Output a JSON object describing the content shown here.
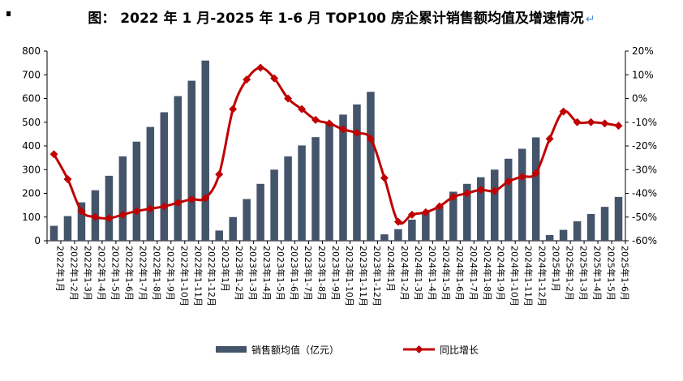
{
  "title": "图：  2022 年 1 月-2025 年 1-6 月 TOP100 房企累计销售额均值及增速情况",
  "title_return_mark": "↵",
  "chart_data": {
    "type": "bar",
    "categories": [
      "2022年1月",
      "2022年1-2月",
      "2022年1-3月",
      "2022年1-4月",
      "2022年1-5月",
      "2022年1-6月",
      "2022年1-7月",
      "2022年1-8月",
      "2022年1-9月",
      "2022年1-10月",
      "2022年1-11月",
      "2022年1-12月",
      "2023年1月",
      "2023年1-2月",
      "2023年1-3月",
      "2023年1-4月",
      "2023年1-5月",
      "2023年1-6月",
      "2023年1-7月",
      "2023年1-8月",
      "2023年1-9月",
      "2023年1-10月",
      "2023年1-11月",
      "2023年1-12月",
      "2024年1月",
      "2024年1-2月",
      "2024年1-3月",
      "2024年1-4月",
      "2024年1-5月",
      "2024年1-6月",
      "2024年1-7月",
      "2024年1-8月",
      "2024年1-9月",
      "2024年1-10月",
      "2024年1-11月",
      "2024年1-12月",
      "2025年1月",
      "2025年1-2月",
      "2025年1-3月",
      "2025年1-4月",
      "2025年1-5月",
      "2025年1-6月"
    ],
    "series": [
      {
        "name": "销售额均值（亿元）",
        "type": "bar",
        "axis": "left",
        "color": "#44546a",
        "values": [
          63,
          104,
          162,
          213,
          274,
          356,
          418,
          480,
          542,
          610,
          675,
          760,
          43,
          100,
          176,
          240,
          300,
          356,
          402,
          437,
          497,
          532,
          575,
          628,
          27,
          49,
          89,
          118,
          146,
          207,
          240,
          268,
          300,
          346,
          388,
          436,
          24,
          46,
          82,
          113,
          143,
          185
        ]
      },
      {
        "name": "同比增长",
        "type": "line",
        "axis": "right",
        "color": "#c00000",
        "unit": "%",
        "values": [
          -23.5,
          -34,
          -47.5,
          -50,
          -50.5,
          -49,
          -47.5,
          -46.5,
          -45.5,
          -44,
          -42.5,
          -42,
          -32,
          -4.5,
          8,
          13,
          8.5,
          0,
          -4.5,
          -9,
          -10.5,
          -13,
          -14.5,
          -17,
          -33.5,
          -52,
          -49,
          -48,
          -45.5,
          -41.5,
          -40,
          -38.5,
          -39,
          -35,
          -33,
          -31.5,
          -17,
          -5.5,
          -10,
          -10,
          -10.5,
          -11.5
        ]
      }
    ],
    "y_left": {
      "min": 0,
      "max": 800,
      "step": 100,
      "ticks": [
        "0",
        "100",
        "200",
        "300",
        "400",
        "500",
        "600",
        "700",
        "800"
      ]
    },
    "y_right": {
      "min": -60,
      "max": 20,
      "step": 10,
      "ticks": [
        "-60%",
        "-50%",
        "-40%",
        "-30%",
        "-20%",
        "-10%",
        "0%",
        "10%",
        "20%"
      ]
    },
    "legend_position": "bottom",
    "grid": false
  }
}
